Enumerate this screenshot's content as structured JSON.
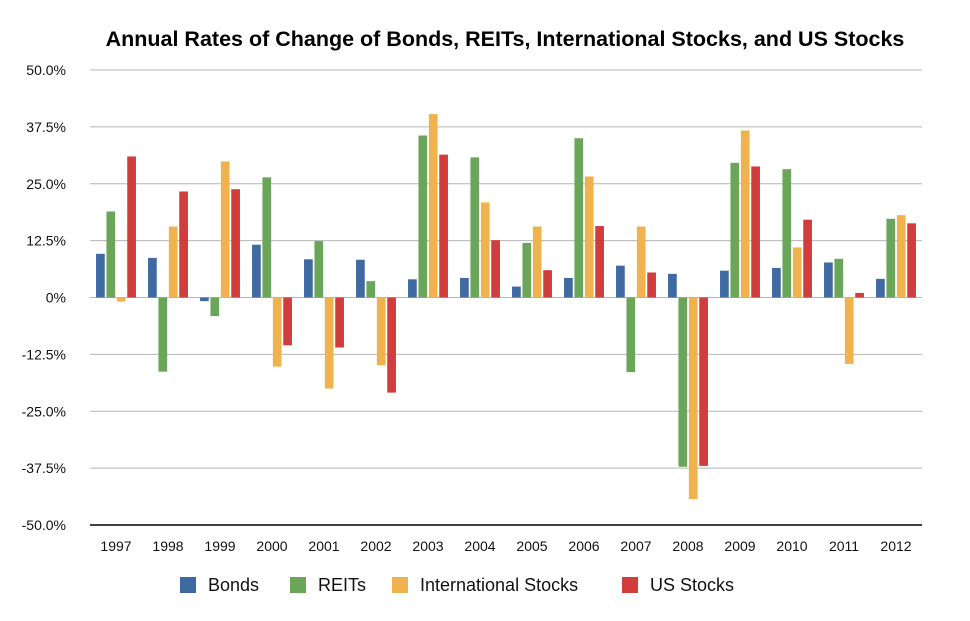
{
  "chart_data": {
    "type": "bar",
    "title": "Annual Rates of Change of Bonds, REITs, International Stocks, and US Stocks",
    "categories": [
      "1997",
      "1998",
      "1999",
      "2000",
      "2001",
      "2002",
      "2003",
      "2004",
      "2005",
      "2006",
      "2007",
      "2008",
      "2009",
      "2010",
      "2011",
      "2012"
    ],
    "ylim": [
      -50,
      50
    ],
    "yticks": [
      "50.0%",
      "37.5%",
      "25.0%",
      "12.5%",
      "0%",
      "-12.5%",
      "-25.0%",
      "-37.5%",
      "-50.0%"
    ],
    "grid": true,
    "legend_position": "bottom",
    "series": [
      {
        "name": "Bonds",
        "color": "#3e6aa1",
        "values": [
          9.6,
          8.7,
          -0.8,
          11.6,
          8.4,
          8.3,
          4.0,
          4.3,
          2.4,
          4.3,
          7.0,
          5.2,
          5.9,
          6.5,
          7.7,
          4.1
        ]
      },
      {
        "name": "REITs",
        "color": "#6aa55a",
        "values": [
          18.9,
          -16.3,
          -4.1,
          26.4,
          12.4,
          3.6,
          35.6,
          30.8,
          12.0,
          35.0,
          -16.4,
          -37.2,
          29.6,
          28.2,
          8.5,
          17.3
        ]
      },
      {
        "name": "International Stocks",
        "color": "#f0b24f",
        "values": [
          -0.9,
          15.6,
          29.9,
          -15.2,
          -20.0,
          -14.9,
          40.3,
          20.9,
          15.6,
          26.6,
          15.6,
          -44.3,
          36.7,
          11.0,
          -14.6,
          18.1
        ]
      },
      {
        "name": "US Stocks",
        "color": "#d13c3c",
        "values": [
          31.0,
          23.3,
          23.8,
          -10.5,
          -11.0,
          -20.9,
          31.4,
          12.6,
          6.0,
          15.7,
          5.5,
          -37.0,
          28.8,
          17.1,
          1.0,
          16.3
        ]
      }
    ]
  }
}
